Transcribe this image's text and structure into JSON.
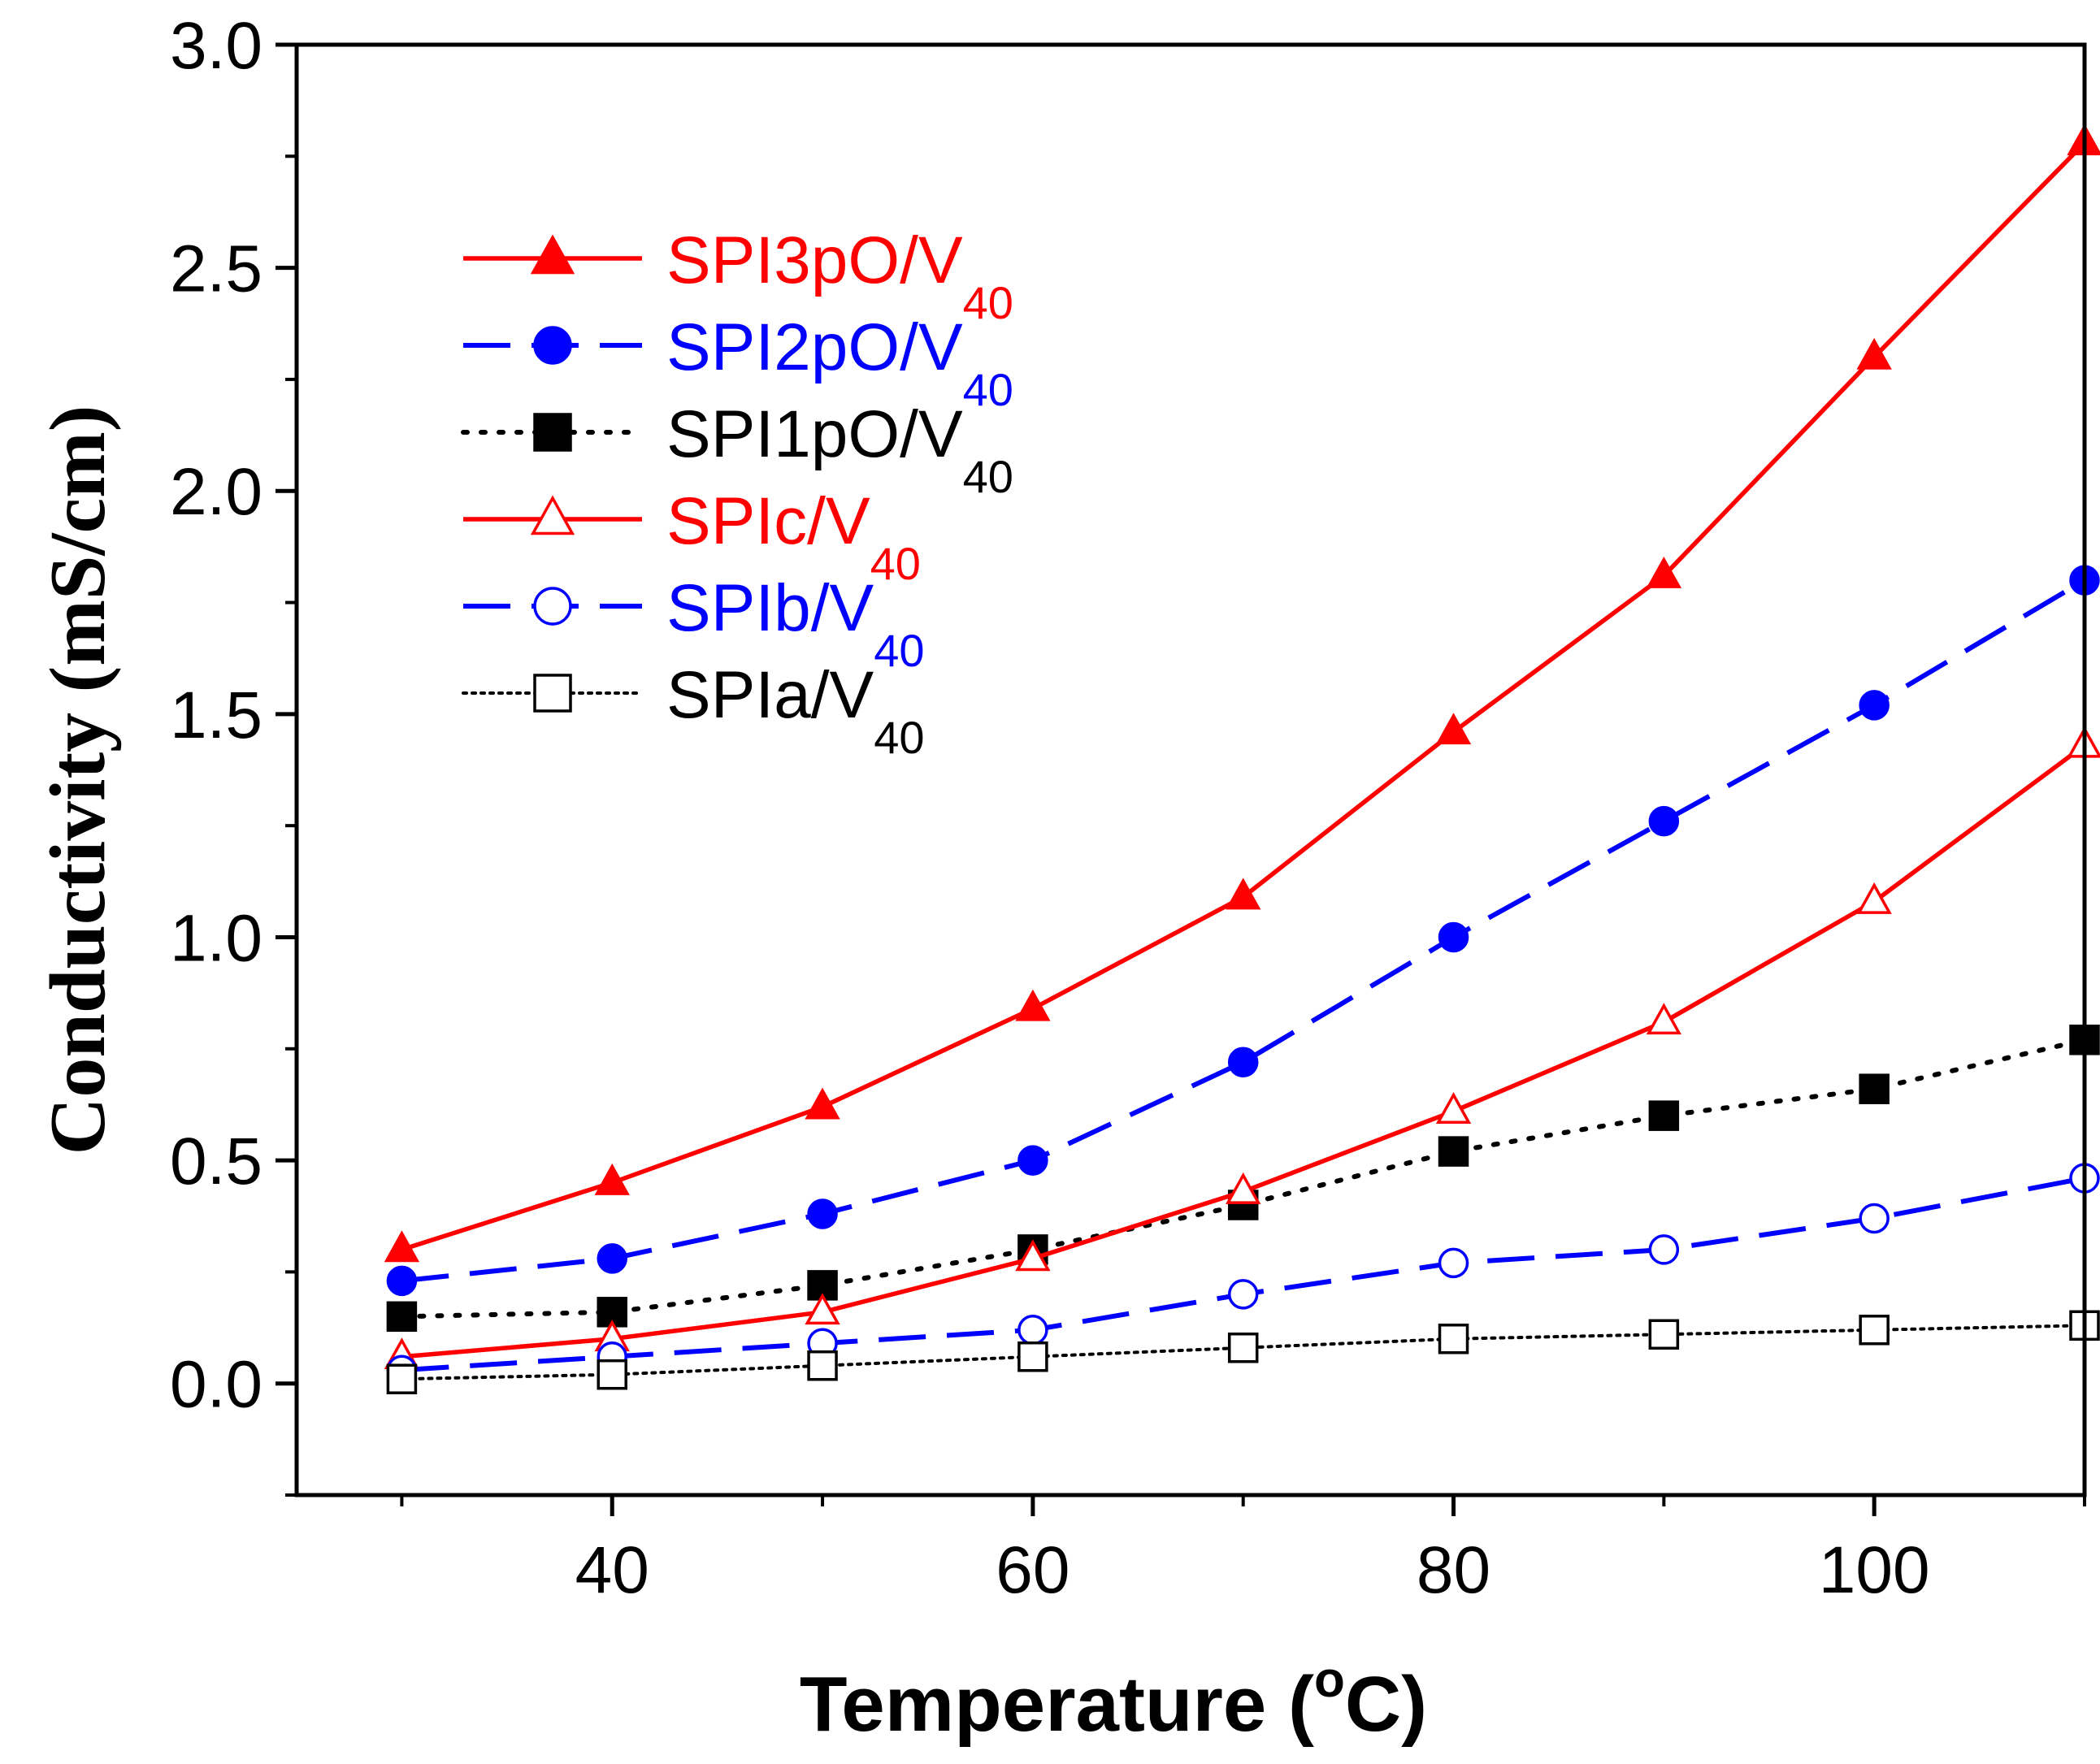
{
  "chart_data": {
    "type": "line",
    "title": "",
    "xlabel": "Temperature (",
    "xlabel_sup": "o",
    "xlabel_end": "C)",
    "ylabel": "Conductivity (mS/cm)",
    "xlim": [
      25,
      110
    ],
    "ylim": [
      -0.25,
      3.0
    ],
    "x_ticks": [
      40,
      60,
      80,
      100
    ],
    "x_tick_labels": [
      "40",
      "60",
      "80",
      "100"
    ],
    "y_ticks": [
      0.0,
      0.5,
      1.0,
      1.5,
      2.0,
      2.5,
      3.0
    ],
    "y_tick_labels": [
      "0.0",
      "0.5",
      "1.0",
      "1.5",
      "2.0",
      "2.5",
      "3.0"
    ],
    "x": [
      30,
      40,
      50,
      60,
      70,
      80,
      90,
      100,
      110
    ],
    "legend_position": "upper-left",
    "series": [
      {
        "name": "SPI3pO/V",
        "sub": "40",
        "color": "#ff0000",
        "marker": "triangle",
        "filled": true,
        "line": "solid",
        "values": [
          0.3,
          0.45,
          0.62,
          0.84,
          1.09,
          1.46,
          1.81,
          2.3,
          2.78
        ]
      },
      {
        "name": "SPI2pO/V",
        "sub": "40",
        "color": "#0000ff",
        "marker": "circle",
        "filled": true,
        "line": "dashed",
        "values": [
          0.23,
          0.28,
          0.38,
          0.5,
          0.72,
          1.0,
          1.26,
          1.52,
          1.8
        ]
      },
      {
        "name": "SPI1pO/V",
        "sub": "40",
        "color": "#000000",
        "marker": "square",
        "filled": true,
        "line": "dotted",
        "values": [
          0.15,
          0.16,
          0.22,
          0.3,
          0.4,
          0.52,
          0.6,
          0.66,
          0.77
        ]
      },
      {
        "name": "SPIc/V",
        "sub": "40",
        "color": "#ff0000",
        "marker": "triangle",
        "filled": false,
        "line": "solid",
        "values": [
          0.06,
          0.1,
          0.16,
          0.28,
          0.43,
          0.61,
          0.81,
          1.08,
          1.43
        ]
      },
      {
        "name": "SPIb/V",
        "sub": "40",
        "color": "#0000ff",
        "marker": "circle",
        "filled": false,
        "line": "dashed",
        "values": [
          0.03,
          0.06,
          0.09,
          0.12,
          0.2,
          0.27,
          0.3,
          0.37,
          0.46
        ]
      },
      {
        "name": "SPIa/V",
        "sub": "40",
        "color": "#000000",
        "marker": "square",
        "filled": false,
        "line": "fine-dotted",
        "values": [
          0.01,
          0.02,
          0.04,
          0.06,
          0.08,
          0.1,
          0.11,
          0.12,
          0.13
        ]
      }
    ]
  }
}
